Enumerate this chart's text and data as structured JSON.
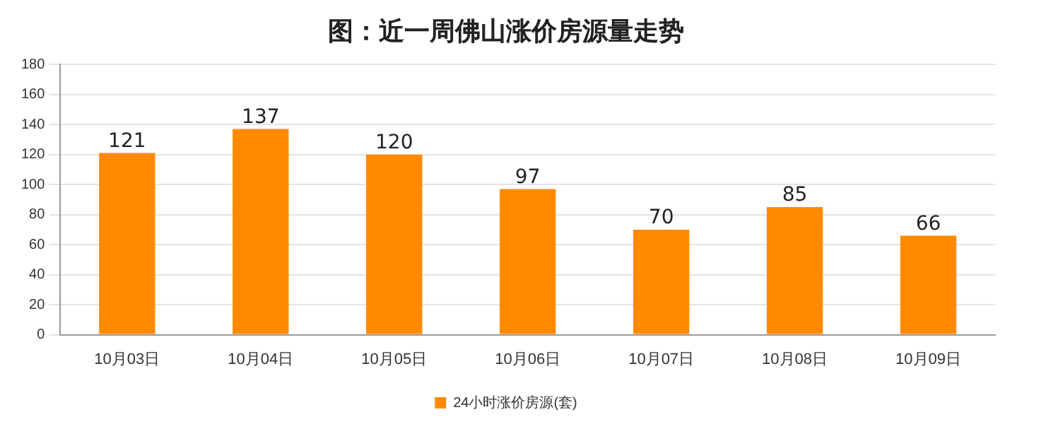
{
  "chart_data": {
    "type": "bar",
    "title": "图：近一周佛山涨价房源量走势",
    "categories": [
      "10月03日",
      "10月04日",
      "10月05日",
      "10月06日",
      "10月07日",
      "10月08日",
      "10月09日"
    ],
    "series": [
      {
        "name": "24小时涨价房源(套)",
        "color": "#ff8a00",
        "values": [
          121,
          137,
          120,
          97,
          70,
          85,
          66
        ]
      }
    ],
    "ylim": [
      0,
      180
    ],
    "yticks": [
      0,
      20,
      40,
      60,
      80,
      100,
      120,
      140,
      160,
      180
    ],
    "grid": "y",
    "legend": "bottom",
    "data_labels": true
  }
}
